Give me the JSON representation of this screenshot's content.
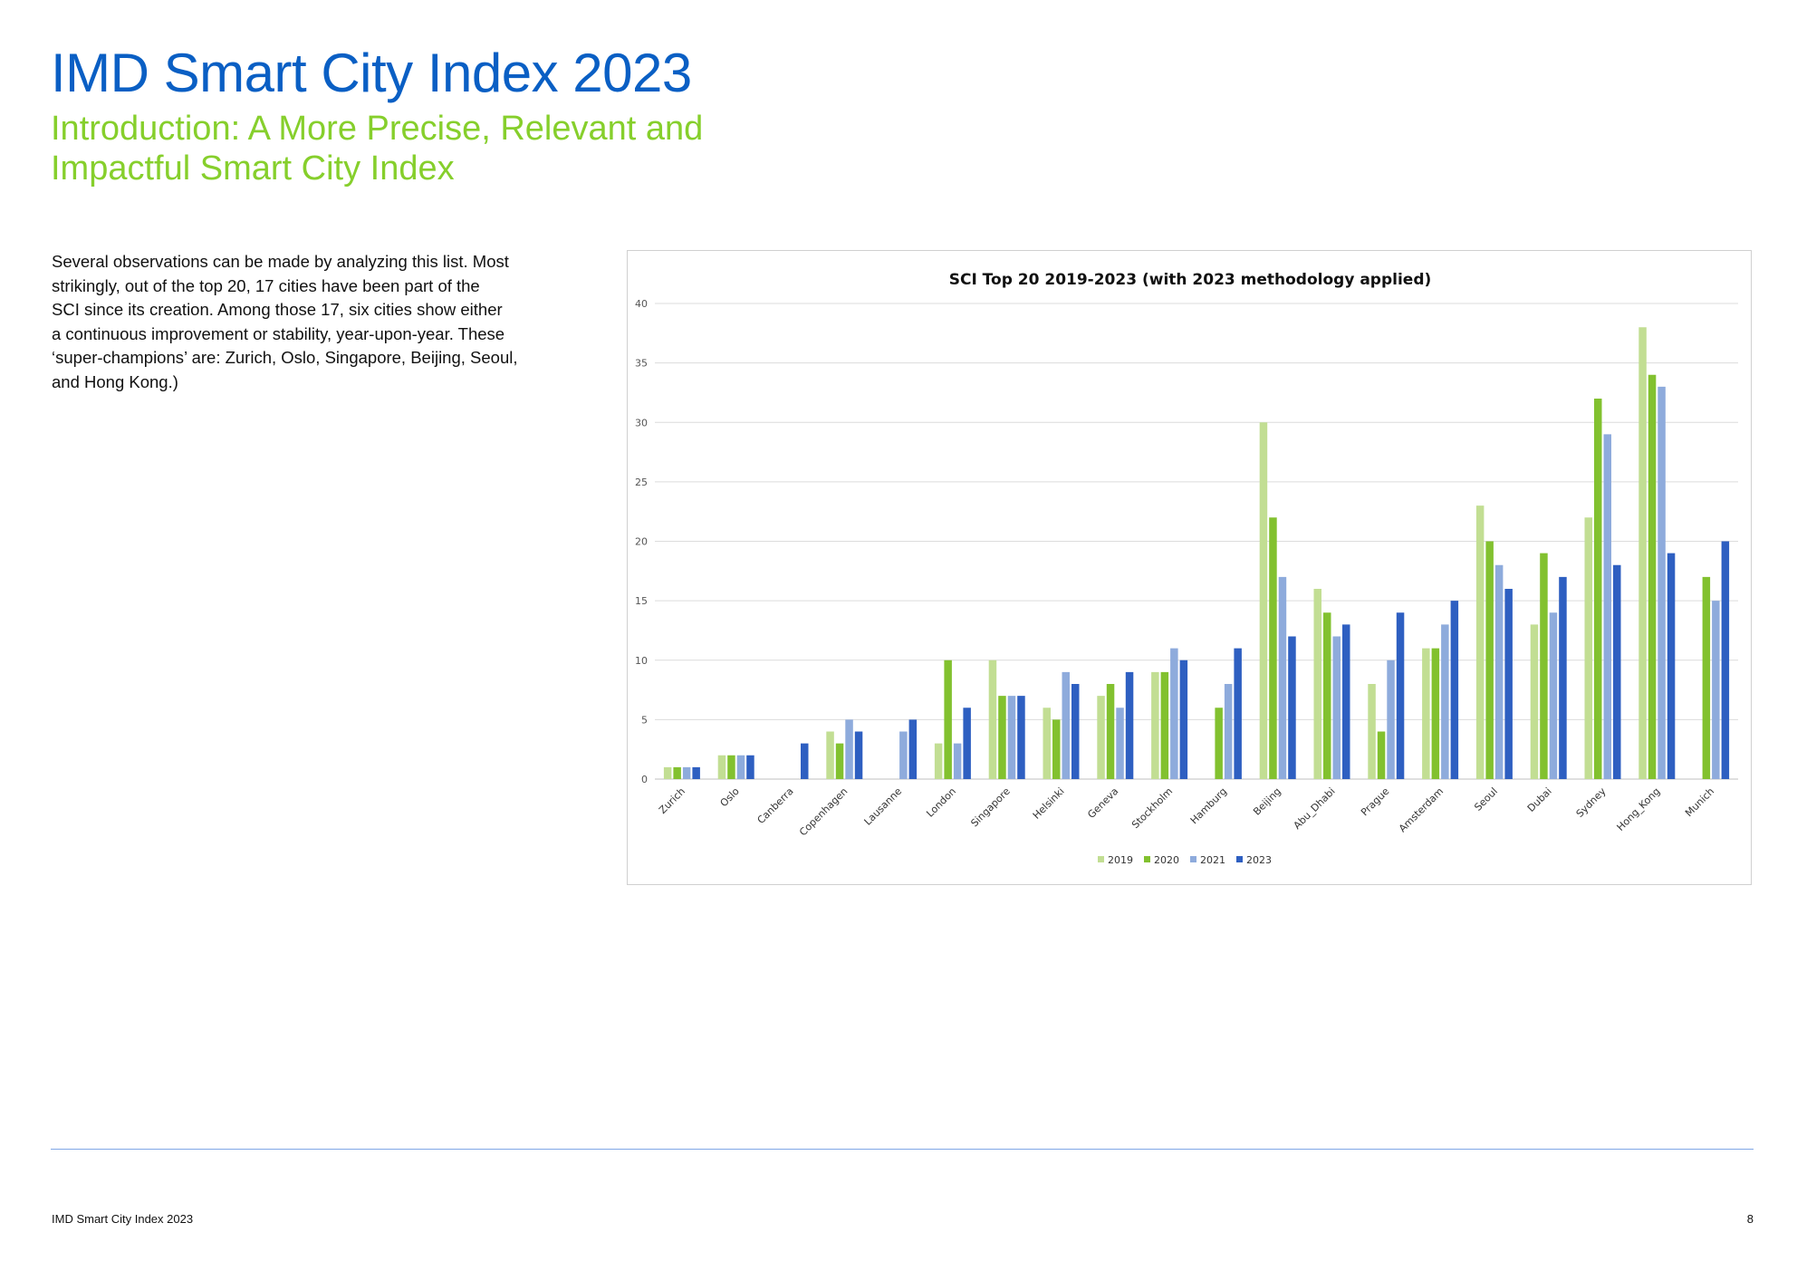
{
  "header": {
    "title": "IMD Smart City Index 2023",
    "subtitle_lines": [
      "Introduction: A More Precise, Relevant and",
      "Impactful Smart City Index"
    ]
  },
  "body": {
    "lines": [
      "Several observations can be made by analyzing this list. Most",
      "strikingly, out of the top 20, 17 cities have been part of the",
      "SCI since its creation. Among those 17, six cities show either",
      "a continuous improvement or stability, year-upon-year. These",
      "‘super-champions’ are: Zurich, Oslo, Singapore, Beijing, Seoul,",
      "and Hong Kong.)"
    ]
  },
  "footer": {
    "left": "IMD Smart City Index 2023",
    "page_number": "8"
  },
  "chart_data": {
    "type": "bar",
    "title": "SCI Top 20 2019-2023 (with 2023 methodology applied)",
    "xlabel": "",
    "ylabel": "",
    "ylim": [
      0,
      40
    ],
    "yticks": [
      "0",
      "5",
      "10",
      "15",
      "20",
      "25",
      "30",
      "35",
      "40"
    ],
    "grid": true,
    "legend_position": "bottom",
    "categories": [
      "Zurich",
      "Oslo",
      "Canberra",
      "Copenhagen",
      "Lausanne",
      "London",
      "Singapore",
      "Helsinki",
      "Geneva",
      "Stockholm",
      "Hamburg",
      "Beijing",
      "Abu_Dhabi",
      "Prague",
      "Amsterdam",
      "Seoul",
      "Dubai",
      "Sydney",
      "Hong_Kong",
      "Munich"
    ],
    "series": [
      {
        "name": "2019",
        "color": "#c2de93",
        "values": [
          1,
          2,
          null,
          4,
          null,
          3,
          10,
          6,
          7,
          9,
          null,
          30,
          16,
          8,
          11,
          23,
          13,
          22,
          38,
          null
        ]
      },
      {
        "name": "2020",
        "color": "#82c12f",
        "values": [
          1,
          2,
          null,
          3,
          null,
          10,
          7,
          5,
          8,
          9,
          6,
          22,
          14,
          4,
          11,
          20,
          19,
          32,
          34,
          17
        ]
      },
      {
        "name": "2021",
        "color": "#8eabdc",
        "values": [
          1,
          2,
          null,
          5,
          4,
          3,
          7,
          9,
          6,
          11,
          8,
          17,
          12,
          10,
          13,
          18,
          14,
          29,
          33,
          15
        ]
      },
      {
        "name": "2023",
        "color": "#2e5fc1",
        "values": [
          1,
          2,
          3,
          4,
          5,
          6,
          7,
          8,
          9,
          10,
          11,
          12,
          13,
          14,
          15,
          16,
          17,
          18,
          19,
          20
        ]
      }
    ]
  }
}
